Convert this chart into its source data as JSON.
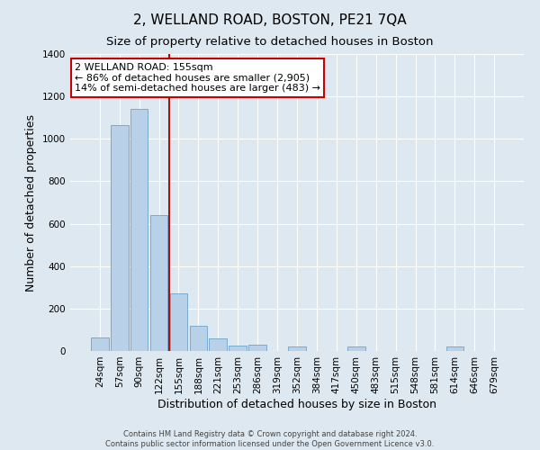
{
  "title": "2, WELLAND ROAD, BOSTON, PE21 7QA",
  "subtitle": "Size of property relative to detached houses in Boston",
  "xlabel": "Distribution of detached houses by size in Boston",
  "ylabel": "Number of detached properties",
  "bar_labels": [
    "24sqm",
    "57sqm",
    "90sqm",
    "122sqm",
    "155sqm",
    "188sqm",
    "221sqm",
    "253sqm",
    "286sqm",
    "319sqm",
    "352sqm",
    "384sqm",
    "417sqm",
    "450sqm",
    "483sqm",
    "515sqm",
    "548sqm",
    "581sqm",
    "614sqm",
    "646sqm",
    "679sqm"
  ],
  "bar_values": [
    65,
    1065,
    1140,
    640,
    270,
    120,
    60,
    25,
    30,
    0,
    20,
    0,
    0,
    20,
    0,
    0,
    0,
    0,
    20,
    0,
    0
  ],
  "bar_color": "#b8d0e8",
  "bar_edgecolor": "#7aaad0",
  "vline_color": "#aa1111",
  "vline_x_pos": 3.5,
  "ylim": [
    0,
    1400
  ],
  "yticks": [
    0,
    200,
    400,
    600,
    800,
    1000,
    1200,
    1400
  ],
  "annotation_text": "2 WELLAND ROAD: 155sqm\n← 86% of detached houses are smaller (2,905)\n14% of semi-detached houses are larger (483) →",
  "annotation_box_facecolor": "#ffffff",
  "annotation_box_edgecolor": "#cc0000",
  "footnote_line1": "Contains HM Land Registry data © Crown copyright and database right 2024.",
  "footnote_line2": "Contains public sector information licensed under the Open Government Licence v3.0.",
  "bg_color": "#dde8f0",
  "plot_bg_color": "#dde8f0",
  "grid_color": "#ffffff",
  "title_fontsize": 11,
  "subtitle_fontsize": 9.5,
  "axis_label_fontsize": 9,
  "tick_fontsize": 7.5,
  "annot_fontsize": 8,
  "footnote_fontsize": 6
}
